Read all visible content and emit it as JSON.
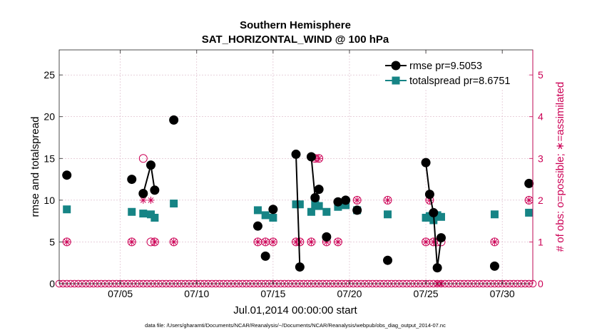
{
  "chart_data": {
    "type": "line",
    "title": "Southern Hemisphere",
    "subtitle": "SAT_HORIZONTAL_WIND @ 100 hPa",
    "xlabel": "Jul.01,2014 00:00:00 start",
    "ylabel": "rmse and totalspread",
    "ylabel_right": "# of obs: o=possible; ∗=assimilated",
    "footnote": "data file: /Users/gharamti/Documents/NCAR/Reanalysis/~/Documents/NCAR/Reanalysis/webpub/obs_diag_output_2014-07.nc",
    "xlim": [
      1.0,
      32.0
    ],
    "ylim": [
      0,
      28
    ],
    "ylim_right": [
      0,
      5.6
    ],
    "x_ticks": [
      5,
      10,
      15,
      20,
      25,
      30
    ],
    "x_tick_labels": [
      "07/05",
      "07/10",
      "07/15",
      "07/20",
      "07/25",
      "07/30"
    ],
    "y_ticks": [
      0,
      5,
      10,
      15,
      20,
      25
    ],
    "y_tick_labels": [
      "0",
      "5",
      "10",
      "15",
      "20",
      "25"
    ],
    "y_ticks_right": [
      0,
      1,
      2,
      3,
      4,
      5
    ],
    "y_tick_labels_right": [
      "0",
      "1",
      "2",
      "3",
      "4",
      "5"
    ],
    "grid": true,
    "legend_position": "top-right",
    "colors": {
      "rmse": "#000000",
      "totalspread": "#168485",
      "obs": "#cc0055",
      "grid": "#d9b3c4",
      "axis": "#222222"
    },
    "series": [
      {
        "name": "rmse",
        "legend_label": "rmse pr=9.5053",
        "marker": "circle",
        "x": [
          1.5,
          5.75,
          6.5,
          7.0,
          7.25,
          8.5,
          14.0,
          14.5,
          15.0,
          16.5,
          16.75,
          17.5,
          17.75,
          18.0,
          18.5,
          19.25,
          19.75,
          20.5,
          22.5,
          25.0,
          25.25,
          25.5,
          25.75,
          26.0,
          29.5,
          31.75
        ],
        "y": [
          13.0,
          12.5,
          10.8,
          14.2,
          11.2,
          19.6,
          6.9,
          3.3,
          8.9,
          15.5,
          2.0,
          15.2,
          10.3,
          11.3,
          5.6,
          9.8,
          10.0,
          8.8,
          2.8,
          14.5,
          10.7,
          8.5,
          1.9,
          5.5,
          2.1,
          12.0
        ],
        "segments": [
          [
            6.5,
            7.0,
            7.25
          ],
          [
            16.5,
            16.75
          ],
          [
            17.5,
            17.75,
            18.0
          ],
          [
            25.0,
            25.25,
            25.5,
            25.75,
            26.0
          ]
        ]
      },
      {
        "name": "totalspread",
        "legend_label": "totalspread pr=8.6751",
        "marker": "square",
        "x": [
          1.5,
          5.75,
          6.5,
          7.0,
          7.25,
          8.5,
          14.0,
          14.5,
          15.0,
          16.5,
          16.75,
          17.5,
          17.75,
          18.0,
          18.5,
          19.25,
          19.75,
          20.5,
          22.5,
          25.0,
          25.25,
          25.5,
          25.75,
          26.0,
          29.5,
          31.75
        ],
        "y": [
          8.9,
          8.6,
          8.4,
          8.3,
          7.9,
          9.6,
          8.8,
          8.2,
          7.9,
          9.5,
          9.5,
          8.6,
          9.5,
          9.3,
          8.6,
          9.2,
          9.4,
          8.8,
          8.3,
          7.9,
          8.1,
          7.6,
          8.2,
          8.0,
          8.3,
          8.5
        ],
        "segments": [
          [
            6.5,
            7.0,
            7.25
          ],
          [
            16.5,
            16.75
          ],
          [
            17.5,
            17.75,
            18.0
          ],
          [
            25.0,
            25.25,
            25.5,
            25.75,
            26.0
          ]
        ]
      },
      {
        "name": "obs_possible",
        "axis": "right",
        "marker": "open-circle",
        "x": [
          1.5,
          5.75,
          6.5,
          7.0,
          7.25,
          8.5,
          14.0,
          14.5,
          15.0,
          16.5,
          16.75,
          17.5,
          17.75,
          18.0,
          18.5,
          19.25,
          19.75,
          20.5,
          22.5,
          25.0,
          25.25,
          25.5,
          25.75,
          26.0,
          29.5,
          31.75
        ],
        "y": [
          1,
          1,
          3,
          1,
          1,
          1,
          1,
          1,
          1,
          1,
          1,
          1,
          3,
          3,
          1,
          1,
          2,
          2,
          2,
          1,
          2,
          1,
          1,
          1,
          1,
          2
        ]
      },
      {
        "name": "obs_assimilated",
        "axis": "right",
        "marker": "asterisk",
        "x": [
          1.5,
          5.75,
          6.5,
          7.0,
          7.25,
          8.5,
          14.0,
          14.5,
          15.0,
          16.5,
          16.75,
          17.5,
          17.75,
          18.0,
          18.5,
          19.25,
          19.75,
          20.5,
          22.5,
          25.0,
          25.25,
          25.5,
          25.75,
          26.0,
          29.5,
          31.75
        ],
        "y": [
          1,
          1,
          2,
          2,
          1,
          1,
          1,
          1,
          1,
          1,
          1,
          1,
          3,
          3,
          1,
          1,
          2,
          2,
          2,
          1,
          2,
          1,
          0,
          0,
          1,
          2
        ]
      }
    ]
  }
}
